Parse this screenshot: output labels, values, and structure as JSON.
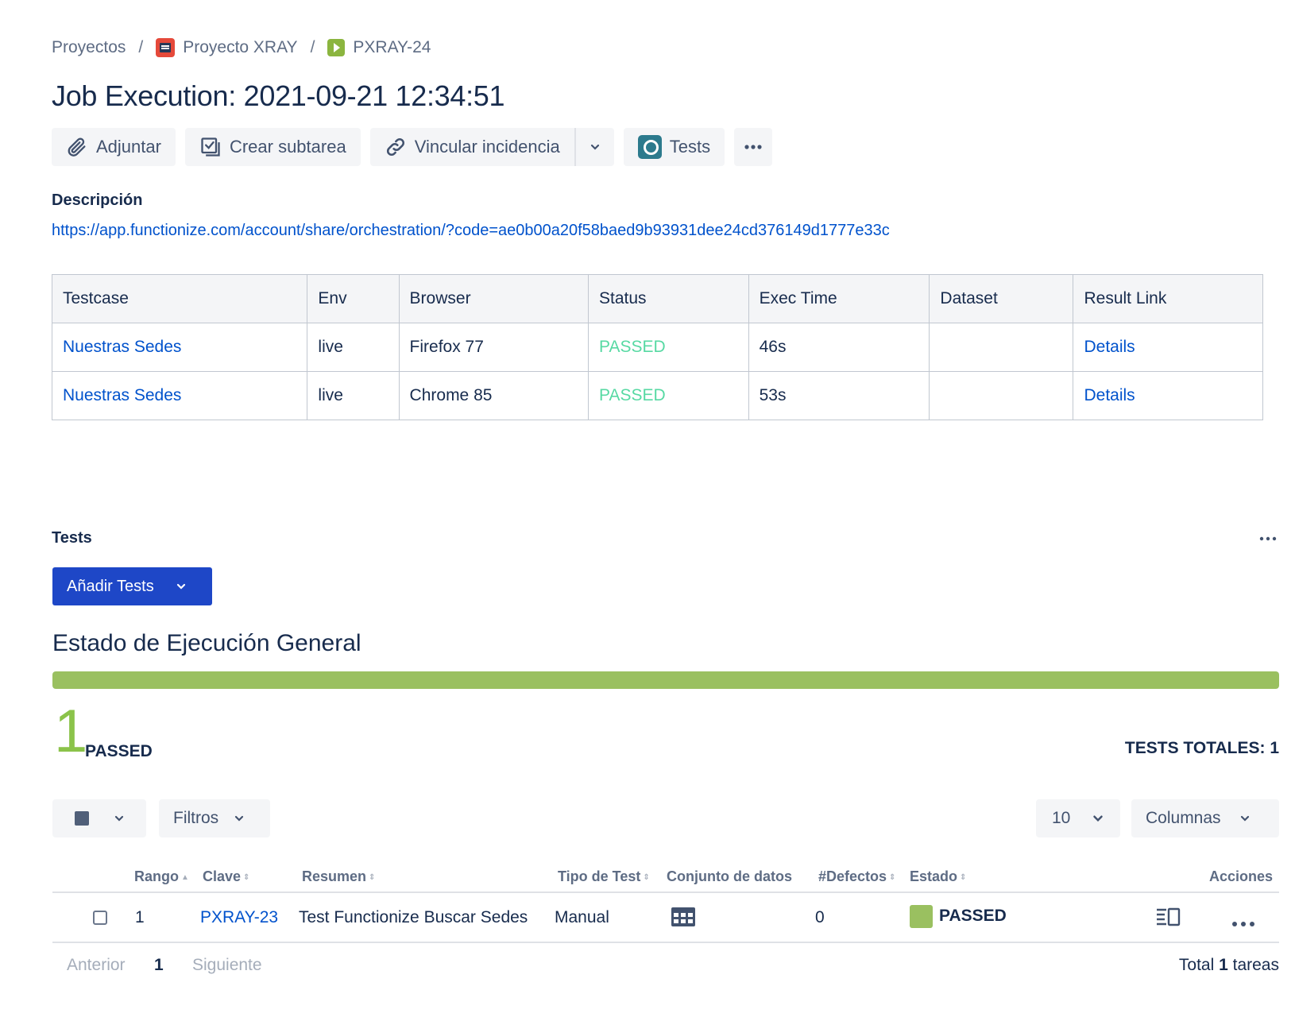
{
  "breadcrumb": {
    "projects": "Proyectos",
    "project": "Proyecto XRAY",
    "issue": "PXRAY-24",
    "separator": "/"
  },
  "title": "Job Execution: 2021-09-21 12:34:51",
  "toolbar": {
    "attach": "Adjuntar",
    "subtask": "Crear subtarea",
    "link": "Vincular incidencia",
    "tests": "Tests"
  },
  "description": {
    "label": "Descripción",
    "url": "https://app.functionize.com/account/share/orchestration/?code=ae0b00a20f58baed9b93931dee24cd376149d1777e33c"
  },
  "results_table": {
    "headers": [
      "Testcase",
      "Env",
      "Browser",
      "Status",
      "Exec Time",
      "Dataset",
      "Result Link"
    ],
    "rows": [
      [
        "Nuestras Sedes",
        "live",
        "Firefox 77",
        "PASSED",
        "46s",
        "",
        "Details"
      ],
      [
        "Nuestras Sedes",
        "live",
        "Chrome 85",
        "PASSED",
        "53s",
        "",
        "Details"
      ]
    ]
  },
  "tests_panel": {
    "heading": "Tests",
    "add_button": "Añadir Tests",
    "exec_title": "Estado de Ejecución General",
    "progress_passed_fraction": 1.0,
    "passed_count": "1",
    "passed_label": "PASSED",
    "totals": "TESTS TOTALES: 1",
    "filters": "Filtros",
    "page_size": "10",
    "columns": "Columnas",
    "headers": {
      "rank": "Rango",
      "key": "Clave",
      "summary": "Resumen",
      "type": "Tipo de Test",
      "dataset": "Conjunto de datos",
      "defects": "#Defectos",
      "status": "Estado",
      "actions": "Acciones"
    },
    "rows": [
      {
        "rank": "1",
        "key": "PXRAY-23",
        "summary": "Test Functionize Buscar Sedes",
        "type": "Manual",
        "defects": "0",
        "status": "PASSED"
      }
    ],
    "pager": {
      "prev": "Anterior",
      "page": "1",
      "next": "Siguiente",
      "total_prefix": "Total",
      "total_count": "1",
      "total_suffix": "tareas"
    }
  },
  "colors": {
    "link": "#0052cc",
    "primary_button": "#1e47c7",
    "passed_green": "#9ac060",
    "passed_text": "#57d9a3"
  }
}
